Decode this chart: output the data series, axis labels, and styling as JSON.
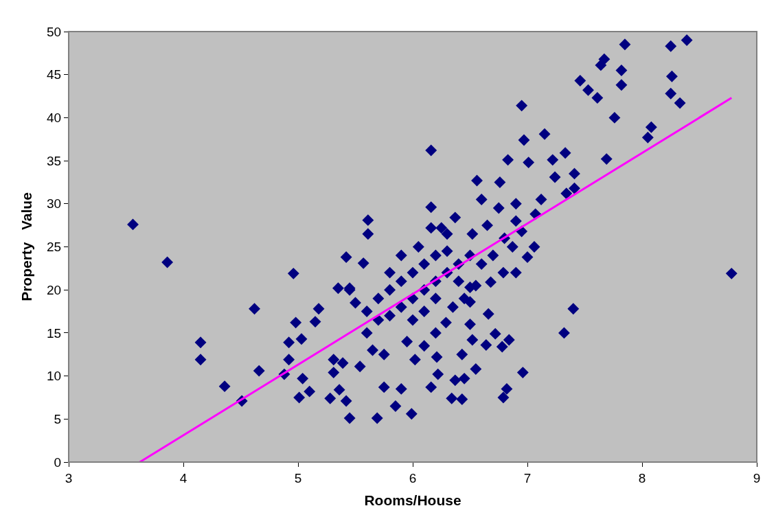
{
  "chart_data": {
    "type": "scatter",
    "xlabel": "Rooms/House",
    "ylabel": "Property   Value",
    "xlim": [
      3,
      9
    ],
    "ylim": [
      0,
      50
    ],
    "xticks": [
      3,
      4,
      5,
      6,
      7,
      8,
      9
    ],
    "yticks": [
      0,
      5,
      10,
      15,
      20,
      25,
      30,
      35,
      40,
      45,
      50
    ],
    "grid": false,
    "marker": "diamond",
    "series": [
      {
        "color": "#000080",
        "x": [
          3.56,
          3.86,
          4.15,
          4.15,
          4.36,
          4.51,
          4.62,
          4.66,
          4.88,
          4.92,
          4.92,
          4.96,
          4.98,
          5.03,
          5.01,
          5.04,
          5.1,
          5.15,
          5.18,
          5.28,
          5.36,
          5.42,
          5.45,
          5.69,
          5.31,
          5.31,
          5.39,
          5.42,
          5.57,
          5.35,
          5.45,
          5.54,
          5.75,
          5.85,
          5.99,
          5.9,
          5.61,
          5.61,
          7.85,
          8.25,
          8.39,
          7.67,
          7.64,
          7.82,
          7.82,
          8.26,
          8.25,
          8.33,
          7.46,
          7.53,
          7.61,
          7.76,
          8.08,
          8.05,
          7.69,
          6.95,
          6.16,
          6.16,
          6.83,
          7.15,
          6.97,
          7.33,
          7.41,
          7.41,
          7.34,
          7.12,
          7.07,
          6.56,
          6.37,
          6.16,
          6.25,
          6.95,
          7.06,
          6.87,
          7.22,
          7.24,
          7.01,
          6.76,
          6.52,
          8.78,
          7.4,
          7.32,
          6.96,
          6.82,
          6.79,
          6.43,
          6.34,
          6.16,
          6.55,
          6.45,
          6.37,
          6.84,
          6.78,
          6.72,
          6.66,
          6.64,
          6.52,
          6.43,
          6.22,
          6.02,
          6.68,
          6.79,
          6.9,
          7.0,
          6.5,
          6.5,
          6.29,
          6.21,
          5.7,
          5.8,
          5.9,
          6.0,
          6.1,
          6.2,
          6.3,
          6.0,
          6.1,
          6.2,
          6.3,
          6.4,
          6.5,
          5.8,
          5.9,
          6.0,
          6.1,
          6.2,
          6.4,
          6.6,
          6.7,
          5.6,
          5.7,
          5.8,
          5.9,
          6.05,
          6.3,
          6.45,
          6.55,
          6.5,
          6.35,
          5.95,
          6.1,
          6.2,
          5.65,
          5.75,
          5.6,
          5.5,
          5.45,
          6.8,
          6.9,
          6.75,
          6.6,
          6.65,
          6.9
        ],
        "values": [
          27.6,
          23.2,
          13.9,
          11.9,
          8.8,
          7.1,
          17.8,
          10.6,
          10.2,
          11.9,
          13.9,
          21.9,
          16.2,
          14.3,
          7.5,
          9.7,
          8.2,
          16.3,
          17.8,
          7.4,
          8.4,
          7.1,
          5.1,
          5.1,
          10.4,
          11.9,
          11.5,
          23.8,
          23.1,
          20.2,
          20.2,
          11.1,
          8.7,
          6.5,
          5.6,
          8.5,
          28.1,
          26.5,
          48.5,
          48.3,
          49.0,
          46.8,
          46.1,
          45.5,
          43.8,
          44.8,
          42.8,
          41.7,
          44.3,
          43.2,
          42.3,
          40.0,
          38.9,
          37.7,
          35.2,
          41.4,
          36.2,
          29.6,
          35.1,
          38.1,
          37.4,
          35.9,
          33.5,
          31.8,
          31.2,
          30.5,
          28.8,
          32.7,
          28.4,
          27.2,
          27.2,
          26.8,
          25.0,
          25.0,
          35.1,
          33.1,
          34.8,
          32.5,
          26.5,
          21.9,
          17.8,
          15.0,
          10.4,
          8.5,
          7.5,
          7.3,
          7.4,
          8.7,
          10.8,
          9.7,
          9.5,
          14.2,
          13.4,
          14.9,
          17.2,
          13.6,
          14.2,
          12.5,
          10.2,
          11.9,
          20.9,
          22.0,
          22.0,
          23.8,
          20.3,
          18.6,
          16.2,
          12.2,
          19,
          20,
          21,
          22,
          23,
          24,
          24.5,
          19,
          20,
          21,
          22,
          23,
          24,
          17,
          18,
          16.5,
          17.5,
          19,
          21,
          23,
          24,
          15,
          16.5,
          22,
          24,
          25,
          26.5,
          19,
          20.5,
          16,
          18,
          14,
          13.5,
          15,
          13,
          12.5,
          17.5,
          18.5,
          20,
          26,
          28,
          29.5,
          30.5,
          27.5,
          30
        ]
      },
      {
        "type": "line",
        "marker": "none",
        "color": "#ff00ff",
        "x": [
          3.62,
          8.78
        ],
        "values": [
          0,
          42.3
        ]
      }
    ]
  }
}
